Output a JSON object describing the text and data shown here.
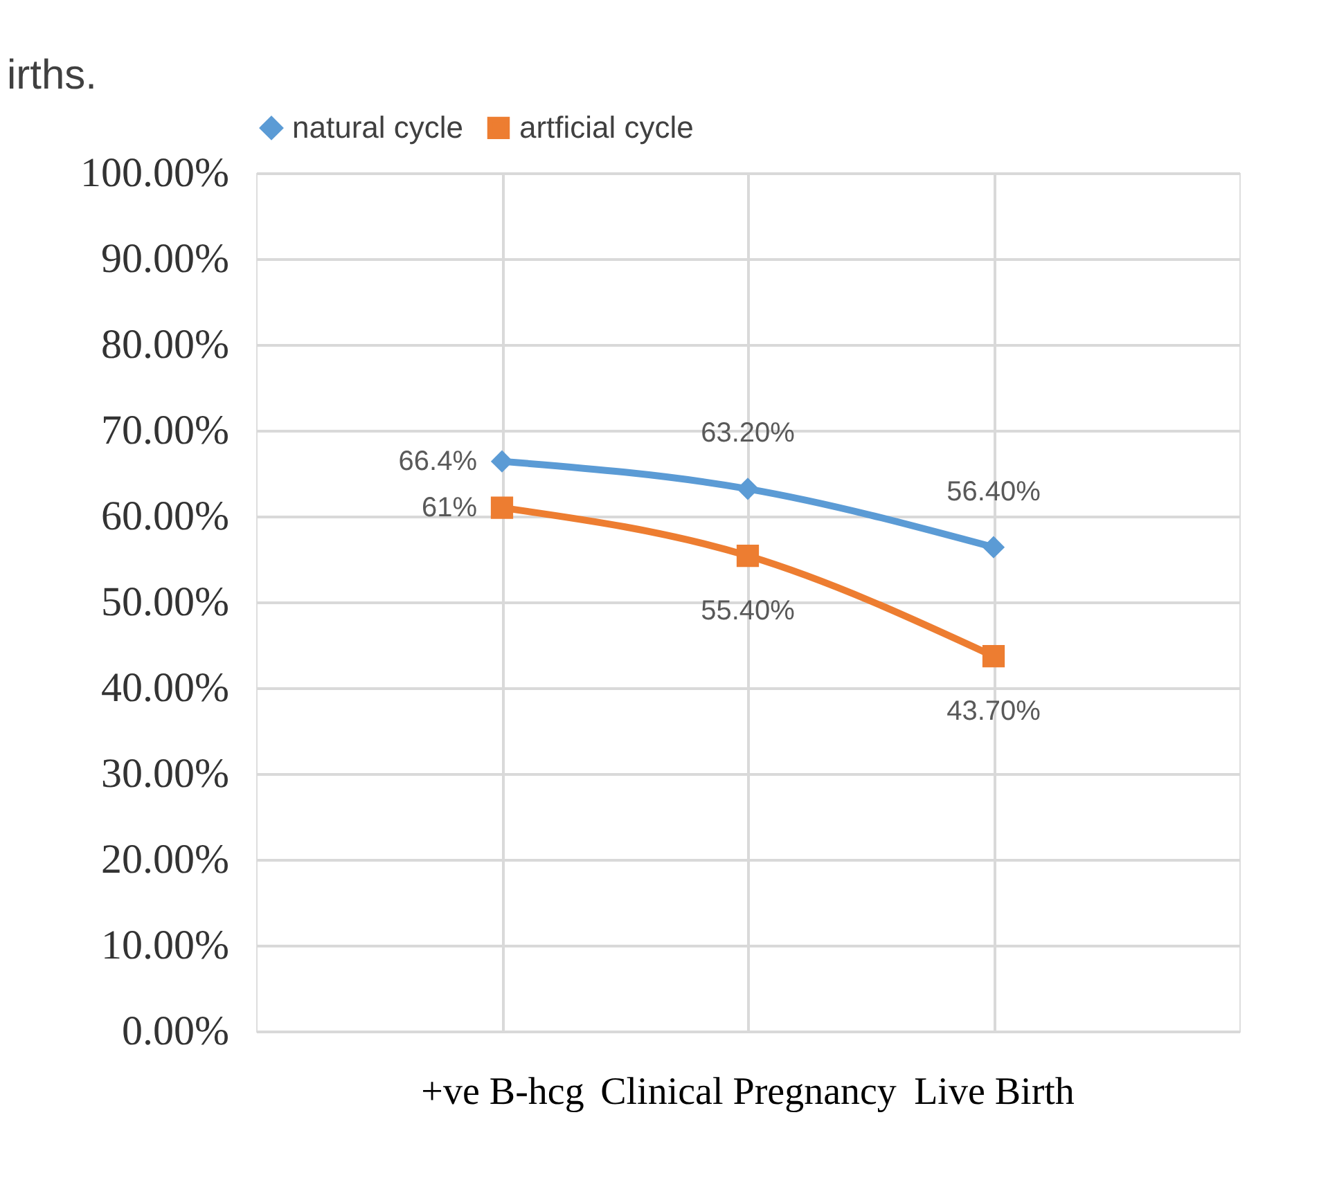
{
  "chart_data": {
    "type": "line",
    "annotations": [
      "irths."
    ],
    "categories": [
      "+ve B-hcg",
      "Clinical Pregnancy",
      "Live Birth"
    ],
    "series": [
      {
        "name": "natural cycle",
        "color": "#5b9bd5",
        "marker": "diamond",
        "values": [
          66.4,
          63.2,
          56.4
        ],
        "value_labels": [
          "66.4%",
          "63.20%",
          "56.40%"
        ]
      },
      {
        "name": "artficial cycle",
        "color": "#ed7d31",
        "marker": "square",
        "values": [
          61,
          55.4,
          43.7
        ],
        "value_labels": [
          "61%",
          "55.40%",
          "43.70%"
        ]
      }
    ],
    "ylim": [
      0,
      100
    ],
    "yticks": [
      {
        "value": 0,
        "label": "0.00%"
      },
      {
        "value": 10,
        "label": "10.00%"
      },
      {
        "value": 20,
        "label": "20.00%"
      },
      {
        "value": 30,
        "label": "30.00%"
      },
      {
        "value": 40,
        "label": "40.00%"
      },
      {
        "value": 50,
        "label": "50.00%"
      },
      {
        "value": 60,
        "label": "60.00%"
      },
      {
        "value": 70,
        "label": "70.00%"
      },
      {
        "value": 80,
        "label": "80.00%"
      },
      {
        "value": 90,
        "label": "90.00%"
      },
      {
        "value": 100,
        "label": "100.00%"
      }
    ],
    "grid": true,
    "legend": "top",
    "line_style": "solid"
  }
}
